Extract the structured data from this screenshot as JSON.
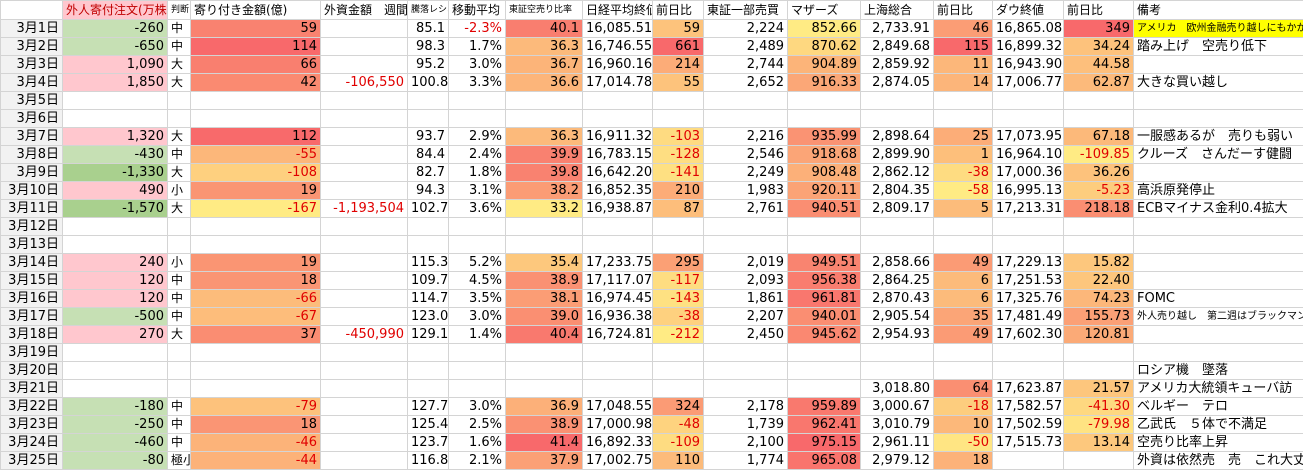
{
  "table": {
    "header": [
      "",
      "外人寄付注文(万株)",
      "判断",
      "寄り付き金額(億)",
      "外資金額　週間",
      "騰落レシオ",
      "移動平均",
      "東証空売り比率",
      "日経平均終値",
      "前日比",
      "東証一部売買",
      "マザーズ",
      "上海総合",
      "前日比",
      "ダウ終値",
      "前日比",
      "備考"
    ],
    "rows": [
      [
        "3月1日",
        "-260",
        "中",
        "59",
        null,
        "85.1",
        "-2.3%",
        "40.1",
        "16,085.51",
        "59",
        "2,224",
        "852.66",
        "2,733.91",
        "46",
        "16,865.08",
        "349",
        "アメリカ　欧州金融売り越しにもかかわらず"
      ],
      [
        "3月2日",
        "-650",
        "中",
        "114",
        null,
        "98.3",
        "1.7%",
        "36.3",
        "16,746.55",
        "661",
        "2,489",
        "870.62",
        "2,849.68",
        "115",
        "16,899.32",
        "34.24",
        "踏み上げ　空売り低下"
      ],
      [
        "3月3日",
        "1,090",
        "大",
        "66",
        null,
        "95.2",
        "3.0%",
        "36.7",
        "16,960.16",
        "214",
        "2,744",
        "904.89",
        "2,859.92",
        "11",
        "16,943.90",
        "44.58",
        null
      ],
      [
        "3月4日",
        "1,850",
        "大",
        "42",
        "-106,550",
        "100.8",
        "3.3%",
        "36.6",
        "17,014.78",
        "55",
        "2,652",
        "916.33",
        "2,874.05",
        "14",
        "17,006.77",
        "62.87",
        "大きな買い越し"
      ],
      [
        "3月5日",
        null,
        null,
        null,
        null,
        null,
        null,
        null,
        null,
        null,
        null,
        null,
        null,
        null,
        null,
        null,
        null
      ],
      [
        "3月6日",
        null,
        null,
        null,
        null,
        null,
        null,
        null,
        null,
        null,
        null,
        null,
        null,
        null,
        null,
        null,
        null
      ],
      [
        "3月7日",
        "1,320",
        "大",
        "112",
        null,
        "93.7",
        "2.9%",
        "36.3",
        "16,911.32",
        "-103",
        "2,216",
        "935.99",
        "2,898.64",
        "25",
        "17,073.95",
        "67.18",
        "一服感あるが　売りも弱い"
      ],
      [
        "3月8日",
        "-430",
        "中",
        "-55",
        null,
        "84.4",
        "2.4%",
        "39.9",
        "16,783.15",
        "-128",
        "2,546",
        "918.68",
        "2,899.90",
        "1",
        "16,964.10",
        "-109.85",
        "クルーズ　さんだーす健闘"
      ],
      [
        "3月9日",
        "-1,330",
        "大",
        "-108",
        null,
        "82.7",
        "1.8%",
        "39.8",
        "16,642.20",
        "-141",
        "2,249",
        "908.48",
        "2,862.12",
        "-38",
        "17,000.36",
        "36.26",
        null
      ],
      [
        "3月10日",
        "490",
        "小",
        "19",
        null,
        "94.3",
        "3.1%",
        "38.2",
        "16,852.35",
        "210",
        "1,983",
        "920.11",
        "2,804.35",
        "-58",
        "16,995.13",
        "-5.23",
        "高浜原発停止"
      ],
      [
        "3月11日",
        "-1,570",
        "大",
        "-167",
        "-1,193,504",
        "102.7",
        "3.6%",
        "33.2",
        "16,938.87",
        "87",
        "2,761",
        "940.51",
        "2,809.17",
        "5",
        "17,213.31",
        "218.18",
        "ECBマイナス金利0.4拡大"
      ],
      [
        "3月12日",
        null,
        null,
        null,
        null,
        null,
        null,
        null,
        null,
        null,
        null,
        null,
        null,
        null,
        null,
        null,
        null
      ],
      [
        "3月13日",
        null,
        null,
        null,
        null,
        null,
        null,
        null,
        null,
        null,
        null,
        null,
        null,
        null,
        null,
        null,
        null
      ],
      [
        "3月14日",
        "240",
        "小",
        "19",
        null,
        "115.3",
        "5.2%",
        "35.4",
        "17,233.75",
        "295",
        "2,019",
        "949.51",
        "2,858.66",
        "49",
        "17,229.13",
        "15.82",
        null
      ],
      [
        "3月15日",
        "120",
        "中",
        "18",
        null,
        "109.7",
        "4.5%",
        "38.9",
        "17,117.07",
        "-117",
        "2,093",
        "956.38",
        "2,864.25",
        "6",
        "17,251.53",
        "22.40",
        null
      ],
      [
        "3月16日",
        "120",
        "中",
        "-66",
        null,
        "114.7",
        "3.5%",
        "38.1",
        "16,974.45",
        "-143",
        "1,861",
        "961.81",
        "2,870.43",
        "6",
        "17,325.76",
        "74.23",
        "FOMC"
      ],
      [
        "3月17日",
        "-500",
        "中",
        "-67",
        null,
        "123.0",
        "3.0%",
        "39.0",
        "16,936.38",
        "-38",
        "2,207",
        "940.01",
        "2,905.54",
        "35",
        "17,481.49",
        "155.73",
        "外人売り越し　第二週はブラックマンデー抜く"
      ],
      [
        "3月18日",
        "270",
        "大",
        "37",
        "-450,990",
        "129.1",
        "1.4%",
        "40.4",
        "16,724.81",
        "-212",
        "2,450",
        "945.62",
        "2,954.93",
        "49",
        "17,602.30",
        "120.81",
        null
      ],
      [
        "3月19日",
        null,
        null,
        null,
        null,
        null,
        null,
        null,
        null,
        null,
        null,
        null,
        null,
        null,
        null,
        null,
        null
      ],
      [
        "3月20日",
        null,
        null,
        null,
        null,
        null,
        null,
        null,
        null,
        null,
        null,
        null,
        null,
        null,
        null,
        null,
        "ロシア機　墜落"
      ],
      [
        "3月21日",
        null,
        null,
        null,
        null,
        null,
        null,
        null,
        null,
        null,
        null,
        null,
        "3,018.80",
        "64",
        "17,623.87",
        "21.57",
        "アメリカ大統領キューバ訪"
      ],
      [
        "3月22日",
        "-180",
        "中",
        "-79",
        null,
        "127.7",
        "3.0%",
        "36.9",
        "17,048.55",
        "324",
        "2,178",
        "959.89",
        "3,000.67",
        "-18",
        "17,582.57",
        "-41.30",
        "ベルギー　テロ"
      ],
      [
        "3月23日",
        "-250",
        "中",
        "18",
        null,
        "125.4",
        "2.5%",
        "38.9",
        "17,000.98",
        "-48",
        "1,739",
        "962.41",
        "3,010.79",
        "10",
        "17,502.59",
        "-79.98",
        "乙武氏　５体で不満足"
      ],
      [
        "3月24日",
        "-460",
        "中",
        "-46",
        null,
        "123.7",
        "1.6%",
        "41.4",
        "16,892.33",
        "-109",
        "2,100",
        "975.15",
        "2,961.11",
        "-50",
        "17,515.73",
        "13.14",
        "空売り比率上昇"
      ],
      [
        "3月25日",
        "-80",
        "極小",
        "-44",
        null,
        "116.8",
        "2.1%",
        "37.9",
        "17,002.75",
        "110",
        "1,774",
        "965.08",
        "2,979.12",
        "18",
        null,
        null,
        "外資は依然売　売　これ大丈夫か？"
      ]
    ]
  }
}
